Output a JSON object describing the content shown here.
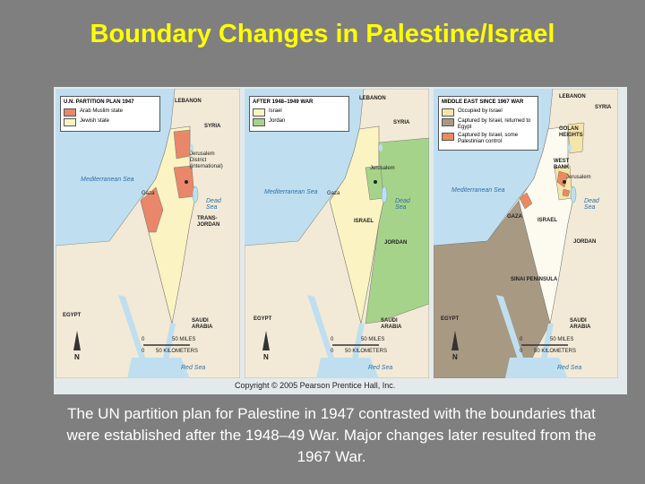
{
  "title": "Boundary Changes in Palestine/Israel",
  "maps": [
    {
      "heading": "U.N. PARTITION PLAN 1947",
      "legend": [
        {
          "label": "Arab Muslim state",
          "color": "#e8876a"
        },
        {
          "label": "Jewish state",
          "color": "#fbf3c2"
        }
      ],
      "labels": [
        "LEBANON",
        "SYRIA",
        "Mediterranean Sea",
        "Gaza",
        "Jerusalem District (international)",
        "Dead Sea",
        "TRANS-JORDAN",
        "EGYPT",
        "SAUDI ARABIA",
        "Red Sea"
      ],
      "scale": [
        "0",
        "50 MILES",
        "0",
        "50 KILOMETERS"
      ],
      "north": "N"
    },
    {
      "heading": "AFTER 1948–1949 WAR",
      "legend": [
        {
          "label": "Israel",
          "color": "#fbf3c2"
        },
        {
          "label": "Jordan",
          "color": "#a6d38a"
        }
      ],
      "labels": [
        "LEBANON",
        "SYRIA",
        "Mediterranean Sea",
        "Gaza",
        "Jerusalem",
        "Dead Sea",
        "ISRAEL",
        "JORDAN",
        "EGYPT",
        "SAUDI ARABIA",
        "Red Sea"
      ],
      "scale": [
        "0",
        "50 MILES",
        "0",
        "50 KILOMETERS"
      ],
      "north": "N"
    },
    {
      "heading": "MIDDLE EAST SINCE 1967 WAR",
      "legend": [
        {
          "label": "Occupied by Israel",
          "color": "#f4e5a8"
        },
        {
          "label": "Captured by Israel, returned to Egypt",
          "color": "#a89a82"
        },
        {
          "label": "Captured by Israel, some Palestinian control",
          "color": "#ec8a5e"
        }
      ],
      "labels": [
        "LEBANON",
        "SYRIA",
        "GOLAN HEIGHTS",
        "Mediterranean Sea",
        "WEST BANK",
        "Jerusalem",
        "Dead Sea",
        "GAZA",
        "ISRAEL",
        "JORDAN",
        "SINAI PENINSULA",
        "EGYPT",
        "SAUDI ARABIA",
        "Red Sea"
      ],
      "scale": [
        "0",
        "50 MILES",
        "0",
        "50 KILOMETERS"
      ],
      "north": "N"
    }
  ],
  "copyright": "Copyright © 2005 Pearson Prentice Hall, Inc.",
  "caption": "The UN partition plan for Palestine in 1947 contrasted with the boundaries that were established after the 1948–49 War. Major changes later resulted from the 1967 War."
}
